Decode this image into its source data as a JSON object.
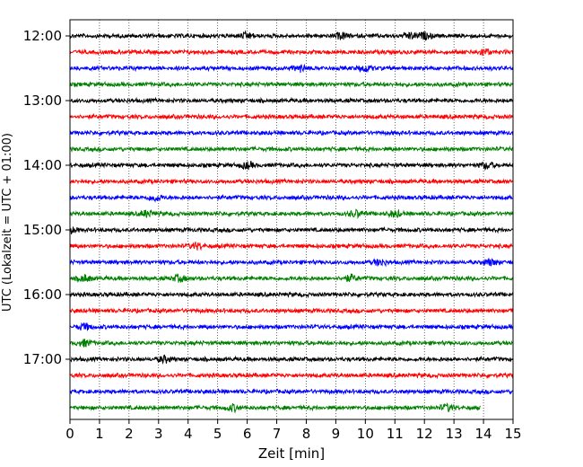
{
  "chart_data": {
    "type": "line",
    "title": "",
    "xlabel": "Zeit  [min]",
    "ylabel": "UTC (Lokalzeit = UTC + 01:00)",
    "xlim": [
      0,
      15
    ],
    "x_ticks": [
      0,
      1,
      2,
      3,
      4,
      5,
      6,
      7,
      8,
      9,
      10,
      11,
      12,
      13,
      14,
      15
    ],
    "grid": "vertical dotted",
    "trace_interval_min": 15,
    "y_ticks": [
      "12:00",
      "13:00",
      "14:00",
      "15:00",
      "16:00",
      "17:00"
    ],
    "colors": {
      "cycle": [
        "#000000",
        "#ff0000",
        "#0000ff",
        "#008000"
      ],
      "grid": "#000000"
    },
    "series": [
      {
        "start": "12:00",
        "color": "#000000",
        "x_end": 15,
        "bursts": [
          6.0,
          9.2,
          11.5,
          12.0
        ]
      },
      {
        "start": "12:15",
        "color": "#ff0000",
        "x_end": 15,
        "bursts": [
          14.0
        ]
      },
      {
        "start": "12:30",
        "color": "#0000ff",
        "x_end": 15,
        "bursts": [
          7.8,
          10.0
        ]
      },
      {
        "start": "12:45",
        "color": "#008000",
        "x_end": 15,
        "bursts": []
      },
      {
        "start": "13:00",
        "color": "#000000",
        "x_end": 15,
        "bursts": []
      },
      {
        "start": "13:15",
        "color": "#ff0000",
        "x_end": 15,
        "bursts": []
      },
      {
        "start": "13:30",
        "color": "#0000ff",
        "x_end": 15,
        "bursts": []
      },
      {
        "start": "13:45",
        "color": "#008000",
        "x_end": 15,
        "bursts": []
      },
      {
        "start": "14:00",
        "color": "#000000",
        "x_end": 15,
        "bursts": [
          6.0,
          14.1
        ]
      },
      {
        "start": "14:15",
        "color": "#ff0000",
        "x_end": 15,
        "bursts": []
      },
      {
        "start": "14:30",
        "color": "#0000ff",
        "x_end": 15,
        "bursts": [
          2.9
        ]
      },
      {
        "start": "14:45",
        "color": "#008000",
        "x_end": 15,
        "bursts": [
          2.6,
          9.7,
          11.0
        ]
      },
      {
        "start": "15:00",
        "color": "#000000",
        "x_end": 15,
        "bursts": [
          0.0
        ]
      },
      {
        "start": "15:15",
        "color": "#ff0000",
        "x_end": 15,
        "bursts": [
          4.3
        ]
      },
      {
        "start": "15:30",
        "color": "#0000ff",
        "x_end": 15,
        "bursts": [
          10.5,
          14.2
        ]
      },
      {
        "start": "15:45",
        "color": "#008000",
        "x_end": 15,
        "bursts": [
          0.5,
          3.7,
          9.5
        ]
      },
      {
        "start": "16:00",
        "color": "#000000",
        "x_end": 15,
        "bursts": []
      },
      {
        "start": "16:15",
        "color": "#ff0000",
        "x_end": 15,
        "bursts": []
      },
      {
        "start": "16:30",
        "color": "#0000ff",
        "x_end": 15,
        "bursts": [
          0.5
        ]
      },
      {
        "start": "16:45",
        "color": "#008000",
        "x_end": 15,
        "bursts": [
          0.5
        ]
      },
      {
        "start": "17:00",
        "color": "#000000",
        "x_end": 15,
        "bursts": [
          3.2
        ]
      },
      {
        "start": "17:15",
        "color": "#ff0000",
        "x_end": 15,
        "bursts": []
      },
      {
        "start": "17:30",
        "color": "#0000ff",
        "x_end": 15,
        "bursts": []
      },
      {
        "start": "17:45",
        "color": "#008000",
        "x_end": 13.9,
        "bursts": [
          5.5,
          12.8
        ]
      }
    ]
  }
}
